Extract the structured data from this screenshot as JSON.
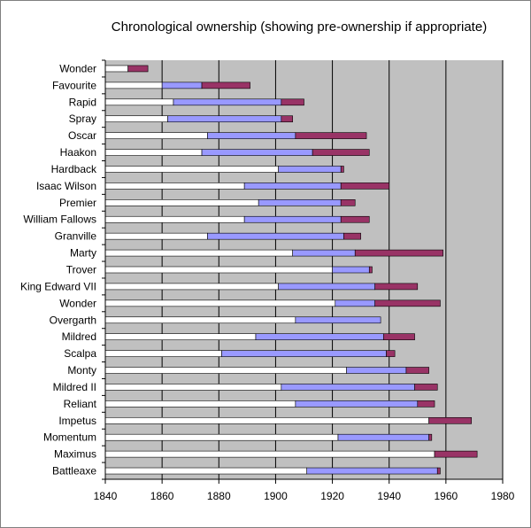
{
  "chart_data": {
    "type": "bar",
    "orientation": "horizontal",
    "stacked": true,
    "title": "Chronological ownership (showing pre-ownership if appropriate)",
    "xlabel": "",
    "ylabel": "",
    "xlim": [
      1840,
      1980
    ],
    "xticks": [
      1840,
      1860,
      1880,
      1900,
      1920,
      1940,
      1960,
      1980
    ],
    "grid": true,
    "legend": "none",
    "colors": {
      "plot_background": "#c0c0c0",
      "span_white": "#ffffff",
      "span_blue": "#9999ff",
      "span_maroon": "#993366",
      "gridline": "#000000"
    },
    "categories": [
      {
        "name": "Wonder",
        "start": 1848,
        "pre_end": 1848,
        "own_end": 1855
      },
      {
        "name": "Favourite",
        "start": 1860,
        "pre_end": 1874,
        "own_end": 1891
      },
      {
        "name": "Rapid",
        "start": 1864,
        "pre_end": 1902,
        "own_end": 1910
      },
      {
        "name": "Spray",
        "start": 1862,
        "pre_end": 1902,
        "own_end": 1906
      },
      {
        "name": "Oscar",
        "start": 1876,
        "pre_end": 1907,
        "own_end": 1932
      },
      {
        "name": "Haakon",
        "start": 1874,
        "pre_end": 1913,
        "own_end": 1933
      },
      {
        "name": "Hardback",
        "start": 1901,
        "pre_end": 1923,
        "own_end": 1924
      },
      {
        "name": "Isaac Wilson",
        "start": 1889,
        "pre_end": 1923,
        "own_end": 1940
      },
      {
        "name": "Premier",
        "start": 1894,
        "pre_end": 1923,
        "own_end": 1928
      },
      {
        "name": "William Fallows",
        "start": 1889,
        "pre_end": 1923,
        "own_end": 1933
      },
      {
        "name": "Granville",
        "start": 1876,
        "pre_end": 1924,
        "own_end": 1930
      },
      {
        "name": "Marty",
        "start": 1906,
        "pre_end": 1928,
        "own_end": 1959
      },
      {
        "name": "Trover",
        "start": 1920,
        "pre_end": 1933,
        "own_end": 1934
      },
      {
        "name": "King Edward VII",
        "start": 1901,
        "pre_end": 1935,
        "own_end": 1950
      },
      {
        "name": "Wonder",
        "start": 1921,
        "pre_end": 1935,
        "own_end": 1958
      },
      {
        "name": "Overgarth",
        "start": 1907,
        "pre_end": 1937,
        "own_end": 1937
      },
      {
        "name": "Mildred",
        "start": 1893,
        "pre_end": 1938,
        "own_end": 1949
      },
      {
        "name": "Scalpa",
        "start": 1881,
        "pre_end": 1939,
        "own_end": 1942
      },
      {
        "name": "Monty",
        "start": 1925,
        "pre_end": 1946,
        "own_end": 1954
      },
      {
        "name": "Mildred II",
        "start": 1902,
        "pre_end": 1949,
        "own_end": 1957
      },
      {
        "name": "Reliant",
        "start": 1907,
        "pre_end": 1950,
        "own_end": 1956
      },
      {
        "name": "Impetus",
        "start": 1954,
        "pre_end": 1954,
        "own_end": 1969
      },
      {
        "name": "Momentum",
        "start": 1922,
        "pre_end": 1954,
        "own_end": 1955
      },
      {
        "name": "Maximus",
        "start": 1956,
        "pre_end": 1956,
        "own_end": 1971
      },
      {
        "name": "Battleaxe",
        "start": 1911,
        "pre_end": 1957,
        "own_end": 1958
      }
    ]
  }
}
